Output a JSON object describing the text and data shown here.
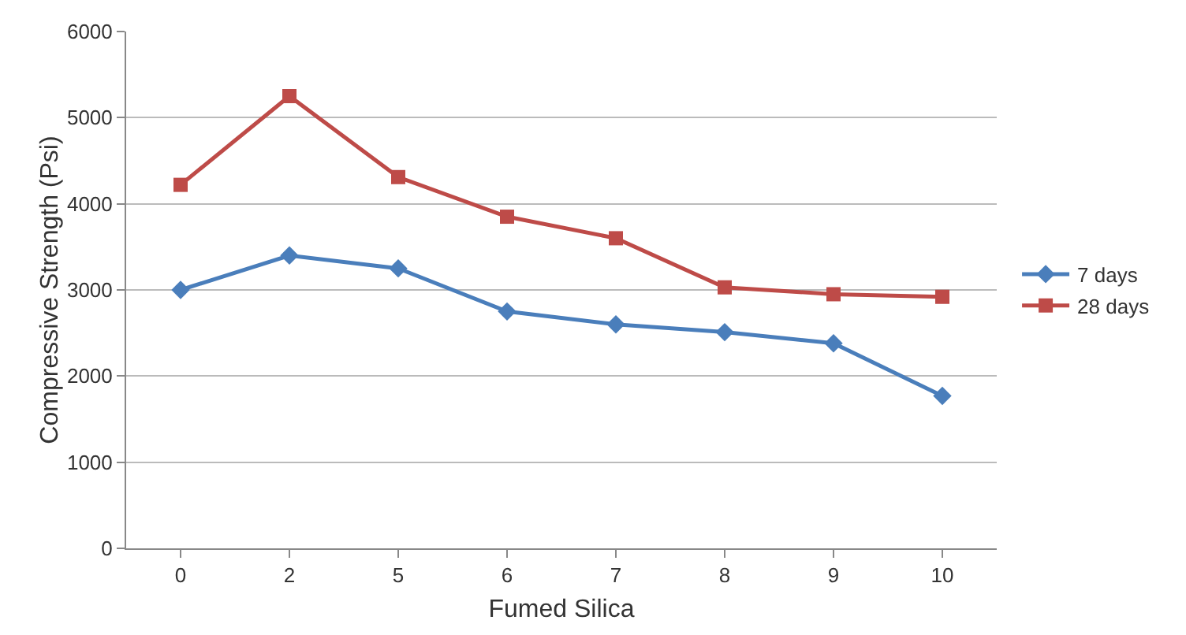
{
  "chart_data": {
    "type": "line",
    "xlabel": "Fumed Silica",
    "ylabel": "Compressive Strength (Psi)",
    "categories": [
      "0",
      "2",
      "5",
      "6",
      "7",
      "8",
      "9",
      "10"
    ],
    "series": [
      {
        "name": "7 days",
        "color": "#4a7ebb",
        "marker": "diamond",
        "values": [
          3000,
          3400,
          3250,
          2750,
          2600,
          2510,
          2380,
          1770
        ]
      },
      {
        "name": "28 days",
        "color": "#be4b48",
        "marker": "square",
        "values": [
          4220,
          5250,
          4310,
          3850,
          3600,
          3030,
          2950,
          2920
        ]
      }
    ],
    "ylim": [
      0,
      6000
    ],
    "yticks": [
      0,
      1000,
      2000,
      3000,
      4000,
      5000,
      6000
    ],
    "grid": "y",
    "legend": "right",
    "line_style": "solid"
  }
}
